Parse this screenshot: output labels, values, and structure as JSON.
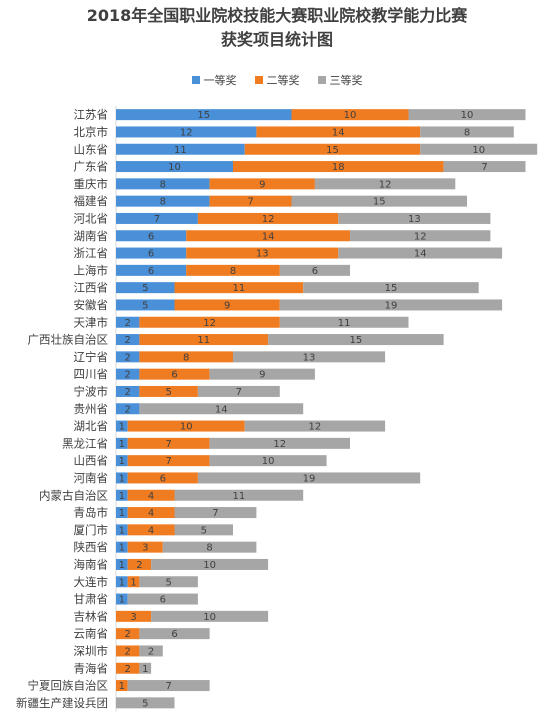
{
  "chart_data": {
    "type": "bar",
    "orientation": "horizontal",
    "stacked": true,
    "title": "2018年全国职业院校技能大赛职业院校教学能力比赛",
    "subtitle": "获奖项目统计图",
    "legend_position": "top",
    "grid": false,
    "categories": [
      "江苏省",
      "北京市",
      "山东省",
      "广东省",
      "重庆市",
      "福建省",
      "河北省",
      "湖南省",
      "浙江省",
      "上海市",
      "江西省",
      "安徽省",
      "天津市",
      "广西壮族自治区",
      "辽宁省",
      "四川省",
      "宁波市",
      "贵州省",
      "湖北省",
      "黑龙江省",
      "山西省",
      "河南省",
      "内蒙古自治区",
      "青岛市",
      "厦门市",
      "陕西省",
      "海南省",
      "大连市",
      "甘肃省",
      "吉林省",
      "云南省",
      "深圳市",
      "青海省",
      "宁夏回族自治区",
      "新疆生产建设兵团"
    ],
    "series": [
      {
        "name": "一等奖",
        "color": "#4a90d9",
        "values": [
          15,
          12,
          11,
          10,
          8,
          8,
          7,
          6,
          6,
          6,
          5,
          5,
          2,
          2,
          2,
          2,
          2,
          2,
          1,
          1,
          1,
          1,
          1,
          1,
          1,
          1,
          1,
          1,
          1,
          0,
          0,
          0,
          0,
          0,
          0
        ]
      },
      {
        "name": "二等奖",
        "color": "#f07c22",
        "values": [
          10,
          14,
          15,
          18,
          9,
          7,
          12,
          14,
          13,
          8,
          11,
          9,
          12,
          11,
          8,
          6,
          5,
          0,
          10,
          7,
          7,
          6,
          4,
          4,
          4,
          3,
          2,
          1,
          0,
          3,
          2,
          2,
          2,
          1,
          0
        ]
      },
      {
        "name": "三等奖",
        "color": "#a6a6a6",
        "values": [
          10,
          8,
          10,
          7,
          12,
          15,
          13,
          12,
          14,
          6,
          15,
          19,
          11,
          15,
          13,
          9,
          7,
          14,
          12,
          12,
          10,
          19,
          11,
          7,
          5,
          8,
          10,
          5,
          6,
          10,
          6,
          2,
          1,
          7,
          5
        ]
      }
    ],
    "xlim": [
      0,
      36
    ]
  }
}
